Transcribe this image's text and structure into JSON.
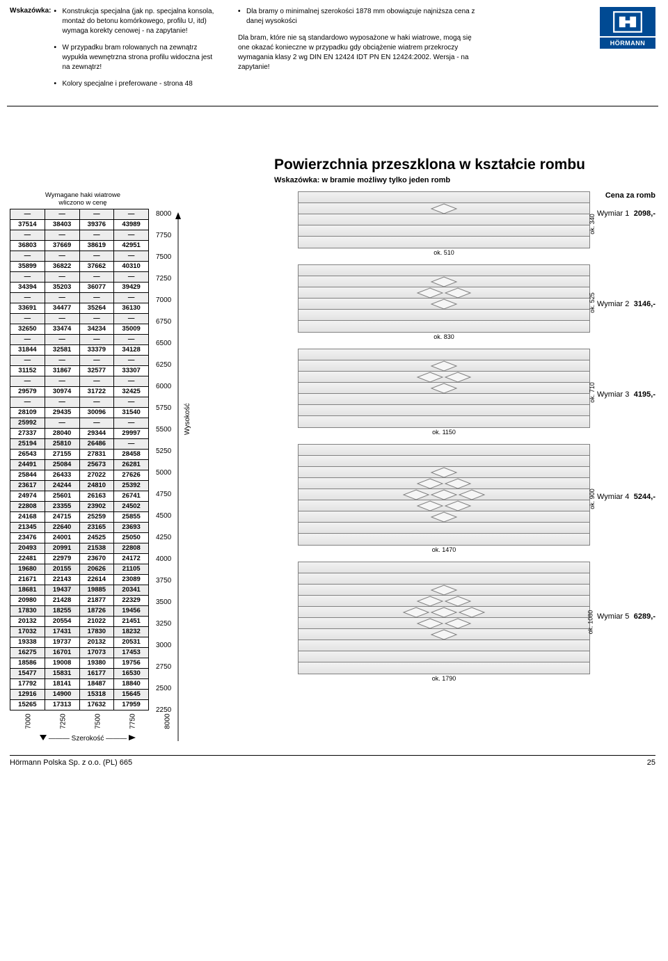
{
  "notes": {
    "label": "Wskazówka:",
    "col1_bullets": [
      "Konstrukcja specjalna (jak np. specjalna konsola, montaż do betonu komórkowego, profilu U, itd) wymaga korekty cenowej - na zapytanie!",
      "W przypadku bram rolowanych na zewnątrz wypukła wewnętrzna strona profilu widoczna jest na zewnątrz!",
      "Kolory specjalne i preferowane - strona 48"
    ],
    "col2_bullets": [
      "Dla bramy o minimalnej szerokości  1878 mm obowiązuje najniższa cena z danej wysokości"
    ],
    "col2_para": "Dla bram, które nie są standardowo wyposażone w haki wiatrowe, mogą się one okazać konieczne w przypadku gdy obciążenie wiatrem przekroczy wymagania klasy 2 wg DIN EN 12424 IDT PN EN 12424:2002. Wersja - na zapytanie!"
  },
  "logo_text": "HÖRMANN",
  "main_title": "Powierzchnia przeszklona w kształcie rombu",
  "main_subtitle": "Wskazówka: w bramie możliwy tylko jeden romb",
  "hook_hint": "Wymagane haki wiatrowe\nwliczono w cenę",
  "y_ticks": [
    "8000",
    "7750",
    "7500",
    "7250",
    "7000",
    "6750",
    "6500",
    "6250",
    "6000",
    "5750",
    "5500",
    "5250",
    "5000",
    "4750",
    "4500",
    "4250",
    "4000",
    "3750",
    "3500",
    "3250",
    "3000",
    "2750",
    "2500",
    "2250"
  ],
  "x_ticks": [
    "7000",
    "7250",
    "7500",
    "7750",
    "8000"
  ],
  "axis_y_label": "Wysokość",
  "axis_x_label": "Szerokość",
  "table_rows": [
    {
      "light": true,
      "cells": [
        "—",
        "—",
        "—",
        "—"
      ]
    },
    {
      "light": false,
      "cells": [
        "37514",
        "38403",
        "39376",
        "43989"
      ]
    },
    {
      "light": true,
      "cells": [
        "—",
        "—",
        "—",
        "—"
      ]
    },
    {
      "light": false,
      "cells": [
        "36803",
        "37669",
        "38619",
        "42951"
      ]
    },
    {
      "light": true,
      "cells": [
        "—",
        "—",
        "—",
        "—"
      ]
    },
    {
      "light": false,
      "cells": [
        "35899",
        "36822",
        "37662",
        "40310"
      ]
    },
    {
      "light": true,
      "cells": [
        "—",
        "—",
        "—",
        "—"
      ]
    },
    {
      "light": false,
      "cells": [
        "34394",
        "35203",
        "36077",
        "39429"
      ]
    },
    {
      "light": true,
      "cells": [
        "—",
        "—",
        "—",
        "—"
      ]
    },
    {
      "light": false,
      "cells": [
        "33691",
        "34477",
        "35264",
        "36130"
      ]
    },
    {
      "light": true,
      "cells": [
        "—",
        "—",
        "—",
        "—"
      ]
    },
    {
      "light": false,
      "cells": [
        "32650",
        "33474",
        "34234",
        "35009"
      ]
    },
    {
      "light": true,
      "cells": [
        "—",
        "—",
        "—",
        "—"
      ]
    },
    {
      "light": false,
      "cells": [
        "31844",
        "32581",
        "33379",
        "34128"
      ]
    },
    {
      "light": true,
      "cells": [
        "—",
        "—",
        "—",
        "—"
      ]
    },
    {
      "light": false,
      "cells": [
        "31152",
        "31867",
        "32577",
        "33307"
      ]
    },
    {
      "light": true,
      "cells": [
        "—",
        "—",
        "—",
        "—"
      ]
    },
    {
      "light": false,
      "cells": [
        "29579",
        "30974",
        "31722",
        "32425"
      ]
    },
    {
      "light": true,
      "cells": [
        "—",
        "—",
        "—",
        "—"
      ]
    },
    {
      "light": false,
      "cells": [
        "28109",
        "29435",
        "30096",
        "31540"
      ]
    },
    {
      "light": true,
      "cells": [
        "25992",
        "—",
        "—",
        "—"
      ]
    },
    {
      "light": false,
      "cells": [
        "27337",
        "28040",
        "29344",
        "29997"
      ]
    },
    {
      "light": true,
      "cells": [
        "25194",
        "25810",
        "26486",
        "—"
      ]
    },
    {
      "light": false,
      "cells": [
        "26543",
        "27155",
        "27831",
        "28458"
      ]
    },
    {
      "light": true,
      "cells": [
        "24491",
        "25084",
        "25673",
        "26281"
      ]
    },
    {
      "light": false,
      "cells": [
        "25844",
        "26433",
        "27022",
        "27626"
      ]
    },
    {
      "light": true,
      "cells": [
        "23617",
        "24244",
        "24810",
        "25392"
      ]
    },
    {
      "light": false,
      "cells": [
        "24974",
        "25601",
        "26163",
        "26741"
      ]
    },
    {
      "light": true,
      "cells": [
        "22808",
        "23355",
        "23902",
        "24502"
      ]
    },
    {
      "light": false,
      "cells": [
        "24168",
        "24715",
        "25259",
        "25855"
      ]
    },
    {
      "light": true,
      "cells": [
        "21345",
        "22640",
        "23165",
        "23693"
      ]
    },
    {
      "light": false,
      "cells": [
        "23476",
        "24001",
        "24525",
        "25050"
      ]
    },
    {
      "light": true,
      "cells": [
        "20493",
        "20991",
        "21538",
        "22808"
      ]
    },
    {
      "light": false,
      "cells": [
        "22481",
        "22979",
        "23670",
        "24172"
      ]
    },
    {
      "light": true,
      "cells": [
        "19680",
        "20155",
        "20626",
        "21105"
      ]
    },
    {
      "light": false,
      "cells": [
        "21671",
        "22143",
        "22614",
        "23089"
      ]
    },
    {
      "light": true,
      "cells": [
        "18681",
        "19437",
        "19885",
        "20341"
      ]
    },
    {
      "light": false,
      "cells": [
        "20980",
        "21428",
        "21877",
        "22329"
      ]
    },
    {
      "light": true,
      "cells": [
        "17830",
        "18255",
        "18726",
        "19456"
      ]
    },
    {
      "light": false,
      "cells": [
        "20132",
        "20554",
        "21022",
        "21451"
      ]
    },
    {
      "light": true,
      "cells": [
        "17032",
        "17431",
        "17830",
        "18232"
      ]
    },
    {
      "light": false,
      "cells": [
        "19338",
        "19737",
        "20132",
        "20531"
      ]
    },
    {
      "light": true,
      "cells": [
        "16275",
        "16701",
        "17073",
        "17453"
      ]
    },
    {
      "light": false,
      "cells": [
        "18586",
        "19008",
        "19380",
        "19756"
      ]
    },
    {
      "light": true,
      "cells": [
        "15477",
        "15831",
        "16177",
        "16530"
      ]
    },
    {
      "light": false,
      "cells": [
        "17792",
        "18141",
        "18487",
        "18840"
      ]
    },
    {
      "light": true,
      "cells": [
        "12916",
        "14900",
        "15318",
        "15645"
      ]
    },
    {
      "light": false,
      "cells": [
        "15265",
        "17313",
        "17632",
        "17959"
      ]
    }
  ],
  "per_romb_header": "Cena za romb",
  "diagrams": [
    {
      "name": "Wymiar 1",
      "price": "2098,-",
      "rows": 2,
      "pattern": [
        1,
        0
      ],
      "w": "ok. 510",
      "h": "ok. 340",
      "slats": 5
    },
    {
      "name": "Wymiar 2",
      "price": "3146,-",
      "rows": 3,
      "pattern": [
        1,
        2,
        1
      ],
      "w": "ok. 830",
      "h": "ok. 525",
      "slats": 6
    },
    {
      "name": "Wymiar 3",
      "price": "4195,-",
      "rows": 4,
      "pattern": [
        1,
        2,
        1,
        0
      ],
      "w": "ok. 1150",
      "h": "ok. 710",
      "slats": 7
    },
    {
      "name": "Wymiar 4",
      "price": "5244,-",
      "rows": 5,
      "pattern": [
        1,
        2,
        3,
        2,
        1
      ],
      "w": "ok. 1470",
      "h": "ok. 900",
      "slats": 9
    },
    {
      "name": "Wymiar 5",
      "price": "6289,-",
      "rows": 6,
      "pattern": [
        1,
        2,
        3,
        2,
        1,
        0
      ],
      "w": "ok. 1790",
      "h": "ok. 1080",
      "slats": 10
    }
  ],
  "footer_company": "Hörmann Polska Sp. z o.o. (PL) 665",
  "footer_page": "25",
  "colors": {
    "slat_border": "#808080",
    "light_row": "#ededed",
    "logo_blue": "#004a93"
  }
}
